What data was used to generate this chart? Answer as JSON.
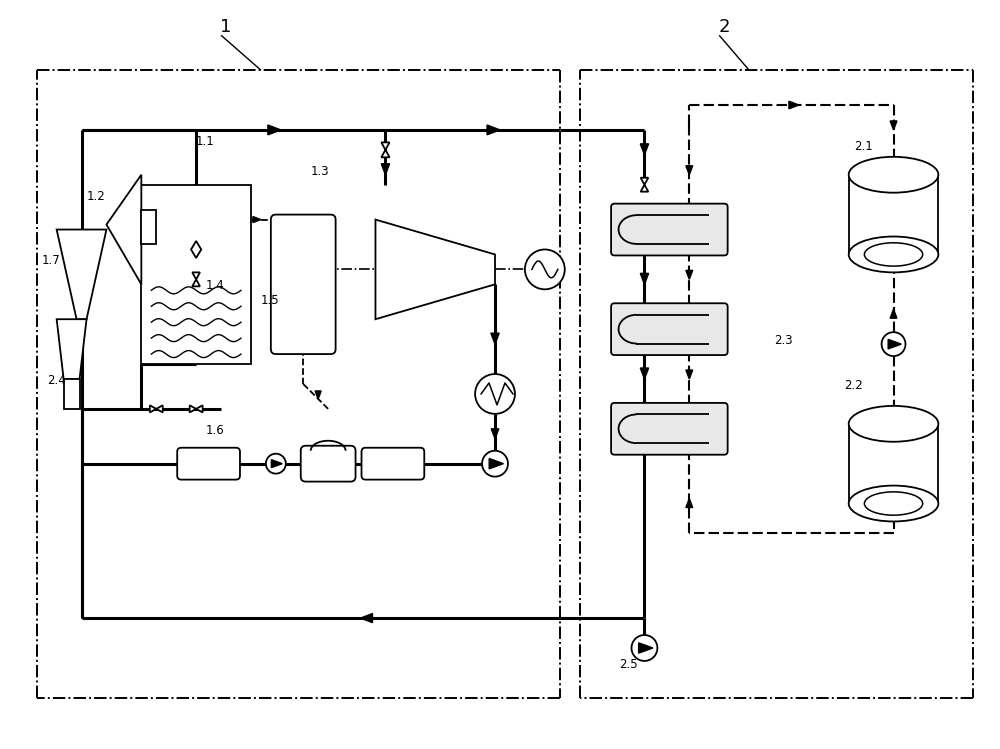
{
  "bg_color": "#ffffff",
  "lc": "#000000",
  "fig_width": 10.0,
  "fig_height": 7.49,
  "labels": {
    "1": "1",
    "2": "2",
    "1.1": "1.1",
    "1.2": "1.2",
    "1.3": "1.3",
    "1.4": "1.4",
    "1.5": "1.5",
    "1.6": "1.6",
    "1.7": "1.7",
    "2.1": "2.1",
    "2.2": "2.2",
    "2.3": "2.3",
    "2.4": "2.4",
    "2.5": "2.5"
  }
}
